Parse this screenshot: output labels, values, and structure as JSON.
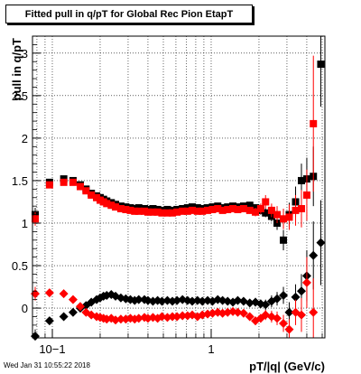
{
  "footer": {
    "datestamp": "Wed Jan 31 10:55:22 2018"
  },
  "chart_data": {
    "type": "scatter",
    "title": "Fitted pull in q/pT for Global Rec Pion EtapT",
    "xlabel": "pT/|q| (GeV/c)",
    "ylabel": "pull in q/pT",
    "x_scale": "log",
    "xlim": [
      0.075,
      5.2
    ],
    "ylim": [
      -0.35,
      3.2
    ],
    "x_tick_labels": [
      "10−1",
      "1"
    ],
    "y_tick_labels": [
      "0",
      "0.5",
      "1",
      "1.5",
      "2",
      "2.5",
      "3"
    ],
    "grid": true,
    "colors": {
      "black_series": "#000000",
      "red_series": "#ff0000"
    },
    "series": [
      {
        "marker": "square",
        "color": "#000000",
        "x": [
          0.078,
          0.096,
          0.118,
          0.135,
          0.15,
          0.163,
          0.176,
          0.19,
          0.2,
          0.21,
          0.22,
          0.235,
          0.25,
          0.27,
          0.29,
          0.31,
          0.33,
          0.35,
          0.38,
          0.4,
          0.43,
          0.46,
          0.49,
          0.53,
          0.57,
          0.61,
          0.66,
          0.71,
          0.76,
          0.82,
          0.88,
          0.95,
          1.02,
          1.1,
          1.18,
          1.27,
          1.37,
          1.47,
          1.6,
          1.75,
          1.9,
          2.05,
          2.2,
          2.4,
          2.6,
          2.85,
          3.1,
          3.4,
          3.7,
          4.0,
          4.4,
          4.9
        ],
        "y": [
          1.1,
          1.48,
          1.52,
          1.5,
          1.45,
          1.4,
          1.35,
          1.32,
          1.3,
          1.28,
          1.26,
          1.24,
          1.22,
          1.2,
          1.19,
          1.18,
          1.17,
          1.18,
          1.17,
          1.16,
          1.17,
          1.16,
          1.15,
          1.16,
          1.15,
          1.16,
          1.17,
          1.18,
          1.19,
          1.18,
          1.17,
          1.18,
          1.19,
          1.2,
          1.18,
          1.19,
          1.2,
          1.19,
          1.2,
          1.21,
          1.18,
          1.15,
          1.12,
          1.08,
          1.0,
          0.8,
          1.1,
          1.25,
          1.5,
          1.52,
          1.55,
          2.87
        ],
        "err": [
          0.08,
          0.03,
          0.03,
          0.03,
          0.02,
          0.02,
          0.02,
          0.02,
          0.02,
          0.02,
          0.02,
          0.02,
          0.02,
          0.02,
          0.02,
          0.02,
          0.02,
          0.02,
          0.02,
          0.02,
          0.02,
          0.02,
          0.02,
          0.02,
          0.02,
          0.02,
          0.02,
          0.02,
          0.02,
          0.02,
          0.02,
          0.02,
          0.02,
          0.03,
          0.03,
          0.03,
          0.03,
          0.03,
          0.04,
          0.04,
          0.04,
          0.05,
          0.05,
          0.06,
          0.08,
          0.12,
          0.14,
          0.18,
          0.2,
          0.25,
          0.35,
          0.5
        ]
      },
      {
        "marker": "square",
        "color": "#ff0000",
        "x": [
          0.078,
          0.096,
          0.118,
          0.135,
          0.15,
          0.163,
          0.176,
          0.19,
          0.2,
          0.21,
          0.22,
          0.235,
          0.25,
          0.27,
          0.29,
          0.31,
          0.33,
          0.35,
          0.38,
          0.4,
          0.43,
          0.46,
          0.49,
          0.53,
          0.57,
          0.61,
          0.66,
          0.71,
          0.76,
          0.82,
          0.88,
          0.95,
          1.02,
          1.1,
          1.18,
          1.27,
          1.37,
          1.47,
          1.6,
          1.75,
          1.9,
          2.05,
          2.2,
          2.4,
          2.6,
          2.85,
          3.1,
          3.4,
          3.7,
          4.0,
          4.4
        ],
        "y": [
          1.05,
          1.45,
          1.48,
          1.48,
          1.43,
          1.38,
          1.33,
          1.3,
          1.27,
          1.25,
          1.23,
          1.21,
          1.19,
          1.17,
          1.16,
          1.15,
          1.14,
          1.14,
          1.14,
          1.13,
          1.13,
          1.13,
          1.12,
          1.12,
          1.12,
          1.13,
          1.14,
          1.14,
          1.15,
          1.14,
          1.14,
          1.15,
          1.16,
          1.17,
          1.15,
          1.16,
          1.17,
          1.16,
          1.17,
          1.15,
          1.13,
          1.17,
          1.25,
          1.15,
          1.1,
          1.05,
          1.07,
          1.15,
          1.17,
          1.33,
          2.17
        ],
        "err": [
          0.08,
          0.03,
          0.03,
          0.03,
          0.02,
          0.02,
          0.02,
          0.02,
          0.02,
          0.02,
          0.02,
          0.02,
          0.02,
          0.02,
          0.02,
          0.02,
          0.02,
          0.02,
          0.02,
          0.02,
          0.02,
          0.02,
          0.02,
          0.02,
          0.02,
          0.02,
          0.02,
          0.02,
          0.02,
          0.02,
          0.02,
          0.02,
          0.02,
          0.03,
          0.03,
          0.03,
          0.03,
          0.03,
          0.04,
          0.04,
          0.05,
          0.06,
          0.08,
          0.08,
          0.1,
          0.12,
          0.15,
          0.18,
          0.22,
          0.3,
          0.8
        ]
      },
      {
        "marker": "diamond",
        "color": "#000000",
        "x": [
          0.078,
          0.096,
          0.118,
          0.135,
          0.15,
          0.163,
          0.176,
          0.19,
          0.2,
          0.21,
          0.22,
          0.235,
          0.25,
          0.27,
          0.29,
          0.31,
          0.33,
          0.35,
          0.38,
          0.4,
          0.43,
          0.46,
          0.49,
          0.53,
          0.57,
          0.61,
          0.66,
          0.71,
          0.76,
          0.82,
          0.88,
          0.95,
          1.02,
          1.1,
          1.18,
          1.27,
          1.37,
          1.47,
          1.6,
          1.75,
          1.9,
          2.05,
          2.2,
          2.4,
          2.6,
          2.85,
          3.1,
          3.4,
          3.7,
          4.0,
          4.4,
          4.9
        ],
        "y": [
          -0.33,
          -0.15,
          -0.1,
          -0.05,
          0.0,
          0.03,
          0.07,
          0.1,
          0.12,
          0.14,
          0.15,
          0.16,
          0.14,
          0.12,
          0.11,
          0.1,
          0.09,
          0.1,
          0.1,
          0.09,
          0.08,
          0.09,
          0.08,
          0.09,
          0.08,
          0.09,
          0.1,
          0.09,
          0.08,
          0.09,
          0.08,
          0.09,
          0.08,
          0.1,
          0.09,
          0.08,
          0.07,
          0.09,
          0.08,
          0.06,
          0.07,
          0.05,
          0.04,
          0.08,
          0.11,
          0.15,
          -0.05,
          0.13,
          0.2,
          0.38,
          0.62,
          0.77
        ],
        "err": [
          0.08,
          0.03,
          0.03,
          0.03,
          0.02,
          0.02,
          0.02,
          0.02,
          0.02,
          0.02,
          0.02,
          0.02,
          0.02,
          0.02,
          0.02,
          0.02,
          0.02,
          0.02,
          0.02,
          0.02,
          0.02,
          0.02,
          0.02,
          0.02,
          0.02,
          0.02,
          0.02,
          0.02,
          0.02,
          0.02,
          0.02,
          0.02,
          0.02,
          0.03,
          0.03,
          0.03,
          0.03,
          0.03,
          0.04,
          0.04,
          0.05,
          0.05,
          0.06,
          0.07,
          0.08,
          0.1,
          0.12,
          0.15,
          0.2,
          0.3,
          0.4,
          0.5
        ]
      },
      {
        "marker": "diamond",
        "color": "#ff0000",
        "x": [
          0.078,
          0.096,
          0.118,
          0.135,
          0.15,
          0.163,
          0.176,
          0.19,
          0.2,
          0.21,
          0.22,
          0.235,
          0.25,
          0.27,
          0.29,
          0.31,
          0.33,
          0.35,
          0.38,
          0.4,
          0.43,
          0.46,
          0.49,
          0.53,
          0.57,
          0.61,
          0.66,
          0.71,
          0.76,
          0.82,
          0.88,
          0.95,
          1.02,
          1.1,
          1.18,
          1.27,
          1.37,
          1.47,
          1.6,
          1.75,
          1.9,
          2.05,
          2.2,
          2.4,
          2.6,
          2.85,
          3.1,
          3.4,
          3.7,
          4.0,
          4.4
        ],
        "y": [
          0.17,
          0.18,
          0.17,
          0.1,
          0.02,
          -0.05,
          -0.08,
          -0.1,
          -0.11,
          -0.12,
          -0.13,
          -0.12,
          -0.14,
          -0.13,
          -0.13,
          -0.12,
          -0.13,
          -0.12,
          -0.11,
          -0.12,
          -0.11,
          -0.12,
          -0.1,
          -0.11,
          -0.1,
          -0.1,
          -0.09,
          -0.09,
          -0.08,
          -0.1,
          -0.08,
          -0.07,
          -0.06,
          -0.05,
          -0.06,
          -0.05,
          -0.04,
          -0.05,
          -0.06,
          -0.1,
          -0.15,
          -0.12,
          -0.08,
          -0.1,
          -0.12,
          -0.18,
          -0.25,
          -0.05,
          -0.08,
          0.3,
          -0.05
        ],
        "err": [
          0.08,
          0.03,
          0.03,
          0.03,
          0.02,
          0.02,
          0.02,
          0.02,
          0.02,
          0.02,
          0.02,
          0.02,
          0.02,
          0.02,
          0.02,
          0.02,
          0.02,
          0.02,
          0.02,
          0.02,
          0.02,
          0.02,
          0.02,
          0.02,
          0.02,
          0.02,
          0.02,
          0.02,
          0.02,
          0.02,
          0.02,
          0.02,
          0.02,
          0.03,
          0.03,
          0.03,
          0.03,
          0.03,
          0.04,
          0.04,
          0.05,
          0.05,
          0.06,
          0.07,
          0.08,
          0.1,
          0.12,
          0.15,
          0.2,
          0.3,
          0.4
        ]
      }
    ]
  }
}
